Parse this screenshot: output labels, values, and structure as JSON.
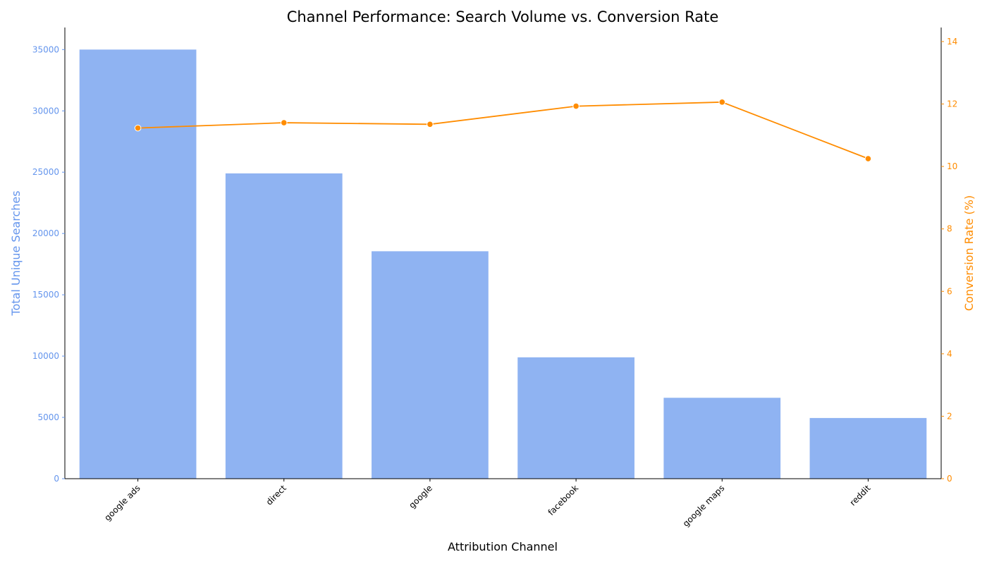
{
  "chart_data": {
    "type": "bar",
    "title": "Channel Performance: Search Volume vs. Conversion Rate",
    "xlabel": "Attribution Channel",
    "ylabel": "Total Unique Searches",
    "y2label": "Conversion Rate (%)",
    "categories": [
      "google ads",
      "direct",
      "google",
      "facebook",
      "google maps",
      "reddit"
    ],
    "series": [
      {
        "type": "bar",
        "axis": "left",
        "color": "#6495ED",
        "values": [
          35000,
          24900,
          18550,
          9900,
          6600,
          4950
        ]
      },
      {
        "type": "line",
        "axis": "right",
        "color": "#FF8C00",
        "values": [
          11.23,
          11.4,
          11.35,
          11.93,
          12.06,
          10.25
        ]
      }
    ],
    "ylim": [
      0,
      36800
    ],
    "y2lim": [
      0,
      14.45
    ],
    "yticks": [
      0,
      5000,
      10000,
      15000,
      20000,
      25000,
      30000,
      35000
    ],
    "y2ticks": [
      0,
      2,
      4,
      6,
      8,
      10,
      12,
      14
    ],
    "left_axis_color": "#6495ED",
    "right_axis_color": "#FF8C00",
    "grid": false
  }
}
